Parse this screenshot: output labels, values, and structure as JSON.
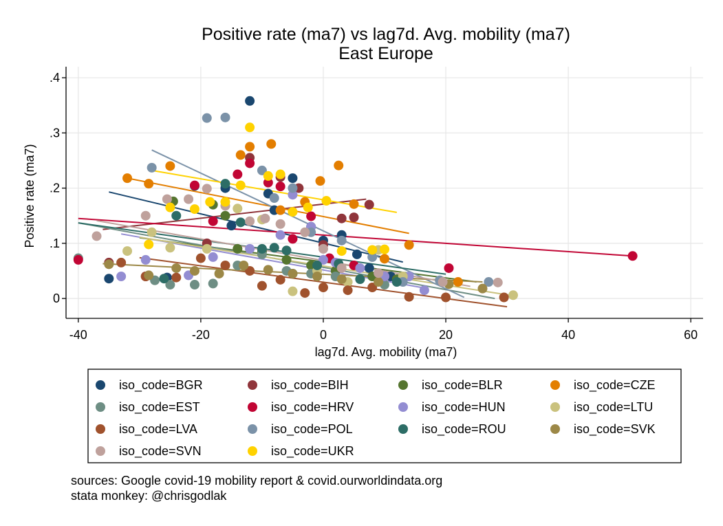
{
  "chart_data": {
    "type": "scatter",
    "title": "Positive rate (ma7) vs lag7d. Avg. mobility (ma7)",
    "subtitle": "East Europe",
    "xlabel": "lag7d. Avg. mobility (ma7)",
    "ylabel": "Positive rate (ma7)",
    "xlim": [
      -40,
      60
    ],
    "ylim": [
      0,
      0.4
    ],
    "xticks": [
      -40,
      -20,
      0,
      20,
      40,
      60
    ],
    "xtick_labels": [
      "-40",
      "-20",
      "0",
      "20",
      "40",
      "60"
    ],
    "yticks": [
      0,
      0.1,
      0.2,
      0.3,
      0.4
    ],
    "ytick_labels": [
      "0",
      ".1",
      ".2",
      ".3",
      ".4"
    ],
    "grid": true,
    "legend_position": "bottom",
    "series": [
      {
        "name": "iso_code=BGR",
        "color": "#1a476f",
        "fit": [
          [
            -35,
            0.193
          ],
          [
            13,
            0.066
          ]
        ],
        "points": [
          [
            -35,
            0.036
          ],
          [
            -25.5,
            0.038
          ],
          [
            -21,
            0.204
          ],
          [
            -16,
            0.2
          ],
          [
            -15,
            0.132
          ],
          [
            -12,
            0.358
          ],
          [
            -9,
            0.19
          ],
          [
            -5,
            0.218
          ],
          [
            -8,
            0.16
          ],
          [
            -2,
            0.13
          ],
          [
            0,
            0.105
          ],
          [
            3,
            0.115
          ],
          [
            5.5,
            0.08
          ],
          [
            7.5,
            0.055
          ],
          [
            11,
            0.04
          ]
        ]
      },
      {
        "name": "iso_code=BIH",
        "color": "#90353b",
        "fit": [
          [
            -36,
            0.125
          ],
          [
            7,
            0.18
          ]
        ],
        "points": [
          [
            -35,
            0.065
          ],
          [
            -29,
            0.04
          ],
          [
            -19,
            0.1
          ],
          [
            -12,
            0.255
          ],
          [
            -7,
            0.22
          ],
          [
            -4,
            0.2
          ],
          [
            0,
            0.097
          ],
          [
            3,
            0.145
          ],
          [
            5,
            0.147
          ],
          [
            7.5,
            0.17
          ]
        ]
      },
      {
        "name": "iso_code=BLR",
        "color": "#55752f",
        "fit": [
          [
            -30,
            0.11
          ],
          [
            25,
            0.03
          ]
        ],
        "points": [
          [
            -24.5,
            0.176
          ],
          [
            -18,
            0.17
          ],
          [
            -16,
            0.15
          ],
          [
            -14,
            0.09
          ],
          [
            -10,
            0.085
          ],
          [
            -6,
            0.07
          ],
          [
            -2,
            0.06
          ],
          [
            2,
            0.05
          ],
          [
            8,
            0.04
          ],
          [
            12,
            0.035
          ]
        ]
      },
      {
        "name": "iso_code=CZE",
        "color": "#e37e00",
        "fit": [
          [
            -32,
            0.218
          ],
          [
            14,
            0.118
          ]
        ],
        "points": [
          [
            -32,
            0.218
          ],
          [
            -28.5,
            0.208
          ],
          [
            -25,
            0.24
          ],
          [
            -13.5,
            0.26
          ],
          [
            -12,
            0.275
          ],
          [
            -8.5,
            0.28
          ],
          [
            -7,
            0.16
          ],
          [
            -3,
            0.175
          ],
          [
            -0.5,
            0.213
          ],
          [
            2.5,
            0.241
          ],
          [
            5,
            0.171
          ],
          [
            10,
            0.072
          ],
          [
            14,
            0.097
          ],
          [
            22,
            0.03
          ]
        ]
      },
      {
        "name": "iso_code=EST",
        "color": "#6e8e84",
        "fit": [
          [
            -40,
            0.137
          ],
          [
            28,
            0.0
          ]
        ],
        "points": [
          [
            -40,
            0.073
          ],
          [
            -27.5,
            0.033
          ],
          [
            -25,
            0.025
          ],
          [
            -21,
            0.025
          ],
          [
            -18,
            0.027
          ],
          [
            -14,
            0.06
          ],
          [
            -10,
            0.08
          ],
          [
            -6,
            0.05
          ],
          [
            -2,
            0.045
          ],
          [
            2,
            0.04
          ],
          [
            6,
            0.035
          ],
          [
            10,
            0.025
          ]
        ]
      },
      {
        "name": "iso_code=HRV",
        "color": "#c10534",
        "fit": [
          [
            -40,
            0.145
          ],
          [
            50.5,
            0.077
          ]
        ],
        "points": [
          [
            -40,
            0.07
          ],
          [
            -21,
            0.205
          ],
          [
            -18,
            0.14
          ],
          [
            -14,
            0.225
          ],
          [
            -12,
            0.245
          ],
          [
            -9,
            0.21
          ],
          [
            -7,
            0.203
          ],
          [
            -5,
            0.108
          ],
          [
            -2,
            0.149
          ],
          [
            1,
            0.073
          ],
          [
            5,
            0.06
          ],
          [
            10,
            0.04
          ],
          [
            20.5,
            0.055
          ],
          [
            50.5,
            0.077
          ]
        ]
      },
      {
        "name": "iso_code=HUN",
        "color": "#938dd2",
        "fit": [
          [
            -33,
            0.117
          ],
          [
            17,
            0.018
          ]
        ],
        "points": [
          [
            -33,
            0.04
          ],
          [
            -29,
            0.07
          ],
          [
            -22,
            0.042
          ],
          [
            -18,
            0.075
          ],
          [
            -12,
            0.09
          ],
          [
            -7,
            0.115
          ],
          [
            -5,
            0.188
          ],
          [
            -2,
            0.13
          ],
          [
            0,
            0.07
          ],
          [
            2,
            0.065
          ],
          [
            6,
            0.055
          ],
          [
            10,
            0.04
          ],
          [
            14,
            0.04
          ],
          [
            16.5,
            0.015
          ]
        ]
      },
      {
        "name": "iso_code=LTU",
        "color": "#cac27e",
        "fit": [
          [
            -30,
            0.111
          ],
          [
            31,
            0.005
          ]
        ],
        "points": [
          [
            -32,
            0.086
          ],
          [
            -28,
            0.12
          ],
          [
            -25,
            0.092
          ],
          [
            -19,
            0.09
          ],
          [
            -14,
            0.163
          ],
          [
            -10,
            0.143
          ],
          [
            -5,
            0.013
          ],
          [
            -1,
            0.05
          ],
          [
            4,
            0.03
          ],
          [
            9,
            0.088
          ],
          [
            13,
            0.04
          ],
          [
            31,
            0.006
          ]
        ]
      },
      {
        "name": "iso_code=LVA",
        "color": "#a0522d",
        "fit": [
          [
            -30,
            0.074
          ],
          [
            30,
            -0.015
          ]
        ],
        "points": [
          [
            -33,
            0.065
          ],
          [
            -29,
            0.04
          ],
          [
            -24,
            0.038
          ],
          [
            -20,
            0.073
          ],
          [
            -16,
            0.06
          ],
          [
            -12,
            0.05
          ],
          [
            -10,
            0.023
          ],
          [
            -7,
            0.034
          ],
          [
            -3,
            0.01
          ],
          [
            0,
            0.02
          ],
          [
            4,
            0.015
          ],
          [
            8,
            0.02
          ],
          [
            14,
            0.003
          ],
          [
            20,
            0.002
          ],
          [
            29.5,
            0.002
          ]
        ]
      },
      {
        "name": "iso_code=POL",
        "color": "#7b92a8",
        "fit": [
          [
            -28,
            0.269
          ],
          [
            23,
            0.002
          ]
        ],
        "points": [
          [
            -28,
            0.237
          ],
          [
            -19,
            0.327
          ],
          [
            -16,
            0.328
          ],
          [
            -10,
            0.232
          ],
          [
            -8,
            0.182
          ],
          [
            -5,
            0.2
          ],
          [
            -2,
            0.12
          ],
          [
            3,
            0.105
          ],
          [
            8,
            0.075
          ],
          [
            13,
            0.03
          ],
          [
            19,
            0.033
          ],
          [
            27,
            0.03
          ]
        ]
      },
      {
        "name": "iso_code=ROU",
        "color": "#2d6d66",
        "fit": [
          [
            -40,
            0.137
          ],
          [
            20,
            0.044
          ]
        ],
        "points": [
          [
            -26,
            0.036
          ],
          [
            -24,
            0.15
          ],
          [
            -16,
            0.208
          ],
          [
            -13.5,
            0.138
          ],
          [
            -10,
            0.09
          ],
          [
            -8,
            0.092
          ],
          [
            -6,
            0.087
          ],
          [
            -5,
            0.045
          ],
          [
            -1,
            0.06
          ],
          [
            2.5,
            0.063
          ],
          [
            6,
            0.035
          ],
          [
            12,
            0.03
          ]
        ]
      },
      {
        "name": "iso_code=SVK",
        "color": "#9c8847",
        "fit": [
          [
            -36,
            0.063
          ],
          [
            26,
            0.03
          ]
        ],
        "points": [
          [
            -35,
            0.062
          ],
          [
            -28.5,
            0.042
          ],
          [
            -24,
            0.055
          ],
          [
            -21,
            0.05
          ],
          [
            -17,
            0.045
          ],
          [
            -13,
            0.06
          ],
          [
            -9,
            0.052
          ],
          [
            -5,
            0.045
          ],
          [
            -1,
            0.04
          ],
          [
            3,
            0.035
          ],
          [
            9,
            0.03
          ],
          [
            20.5,
            0.026
          ],
          [
            26,
            0.018
          ]
        ]
      },
      {
        "name": "iso_code=SVN",
        "color": "#bfa19c",
        "fit": [
          [
            -37,
            0.141
          ],
          [
            24,
            0.022
          ]
        ],
        "points": [
          [
            -37,
            0.113
          ],
          [
            -29,
            0.15
          ],
          [
            -25.5,
            0.18
          ],
          [
            -22,
            0.18
          ],
          [
            -19,
            0.199
          ],
          [
            -16,
            0.168
          ],
          [
            -12,
            0.14
          ],
          [
            -9.5,
            0.145
          ],
          [
            -7,
            0.135
          ],
          [
            -3,
            0.12
          ],
          [
            0,
            0.09
          ],
          [
            3,
            0.055
          ],
          [
            9,
            0.046
          ],
          [
            19.5,
            0.03
          ],
          [
            28.5,
            0.029
          ]
        ]
      },
      {
        "name": "iso_code=UKR",
        "color": "#ffd200",
        "fit": [
          [
            -28,
            0.232
          ],
          [
            12,
            0.156
          ]
        ],
        "points": [
          [
            -28.5,
            0.098
          ],
          [
            -25,
            0.165
          ],
          [
            -21,
            0.162
          ],
          [
            -18.5,
            0.175
          ],
          [
            -16,
            0.175
          ],
          [
            -13.5,
            0.205
          ],
          [
            -12,
            0.31
          ],
          [
            -9,
            0.222
          ],
          [
            -7,
            0.225
          ],
          [
            -5,
            0.157
          ],
          [
            -2.5,
            0.165
          ],
          [
            0.5,
            0.177
          ],
          [
            3,
            0.086
          ],
          [
            8,
            0.088
          ],
          [
            10,
            0.089
          ]
        ]
      }
    ],
    "note_lines": [
      "sources: Google covid-19 mobility report & covid.ourworldindata.org",
      "stata monkey: @chrisgodlak"
    ]
  }
}
